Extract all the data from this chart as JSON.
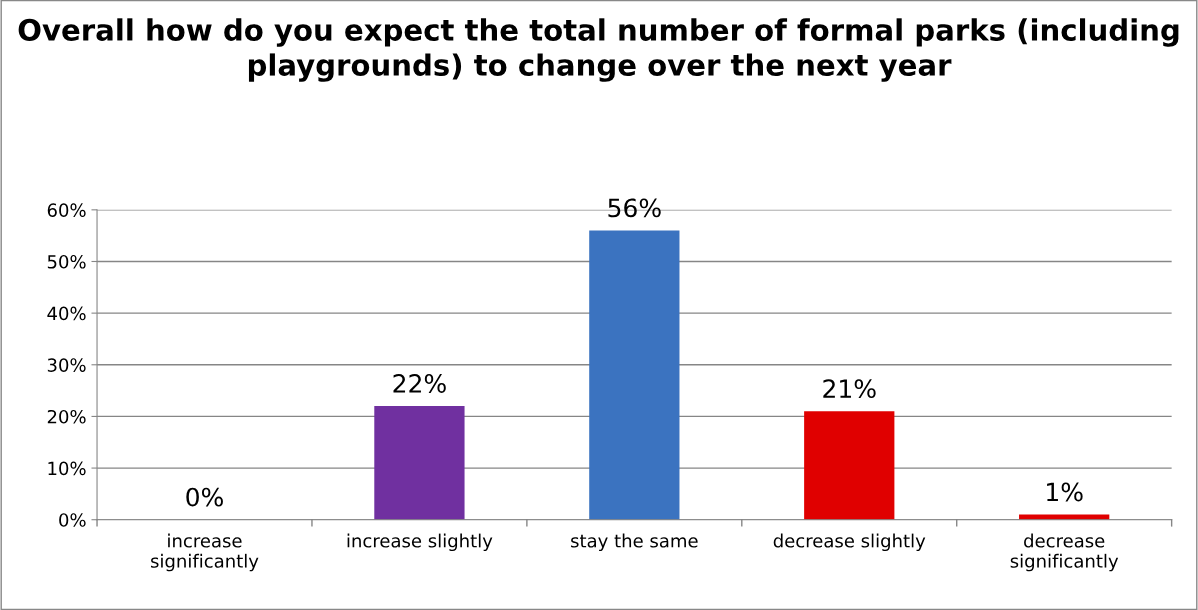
{
  "chart_data": {
    "type": "bar",
    "title": "Overall how do you expect the total number of formal parks (including playgrounds) to change over the next year",
    "categories": [
      "increase significantly",
      "increase slightly",
      "stay the same",
      "decrease slightly",
      "decrease significantly"
    ],
    "values": [
      0,
      22,
      56,
      21,
      1
    ],
    "colors": [
      "#7030a0",
      "#7030a0",
      "#3b73c0",
      "#e00000",
      "#e00000"
    ],
    "value_labels": [
      "0%",
      "22%",
      "56%",
      "21%",
      "1%"
    ],
    "ylim": [
      0,
      60
    ],
    "yticks": [
      {
        "value": 0,
        "label": "0%"
      },
      {
        "value": 10,
        "label": "10%"
      },
      {
        "value": 20,
        "label": "20%"
      },
      {
        "value": 30,
        "label": "30%"
      },
      {
        "value": 40,
        "label": "40%"
      },
      {
        "value": 50,
        "label": "50%"
      },
      {
        "value": 60,
        "label": "60%"
      }
    ],
    "grid": "y"
  }
}
